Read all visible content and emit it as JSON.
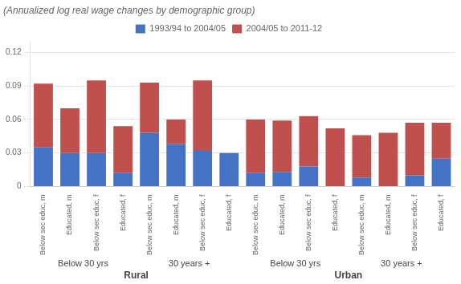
{
  "chart_data": {
    "type": "bar",
    "title": "(Annualized log real wage changes by demographic group)",
    "categories": [
      "Below sec educ, m",
      "Educated, m",
      "Below sec educ, f",
      "Educated, f",
      "Below sec educ, m",
      "Educated, m",
      "Below sec educ, f",
      "Educated, f",
      "Below sec educ, m",
      "Educated, m",
      "Below sec educ, f",
      "Educated, f",
      "Below sec educ, m",
      "Educated, m",
      "Below sec educ, f",
      "Educated, f"
    ],
    "group_labels": [
      "Below 30 yrs",
      "30 years +",
      "Below 30 yrs",
      "30 years +"
    ],
    "section_labels": [
      "Rural",
      "Urban"
    ],
    "series": [
      {
        "name": "1993/94 to 2004/05",
        "color": "#4472C4",
        "values": [
          0.035,
          0.03,
          0.03,
          0.012,
          0.048,
          0.038,
          0.032,
          0.03,
          0.012,
          0.013,
          0.018,
          0.0,
          0.008,
          0.0,
          0.01,
          0.025
        ]
      },
      {
        "name": "2004/05 to 2011-12",
        "color": "#C0504D",
        "values": [
          0.057,
          0.04,
          0.065,
          0.042,
          0.045,
          0.022,
          0.063,
          0.0,
          0.048,
          0.046,
          0.045,
          0.052,
          0.038,
          0.048,
          0.047,
          0.032
        ]
      }
    ],
    "stacked": true,
    "ylim": [
      0.0,
      0.13
    ],
    "yticks": [
      0.0,
      0.03,
      0.06,
      0.09,
      0.12
    ],
    "grid": true,
    "legend": "top"
  }
}
